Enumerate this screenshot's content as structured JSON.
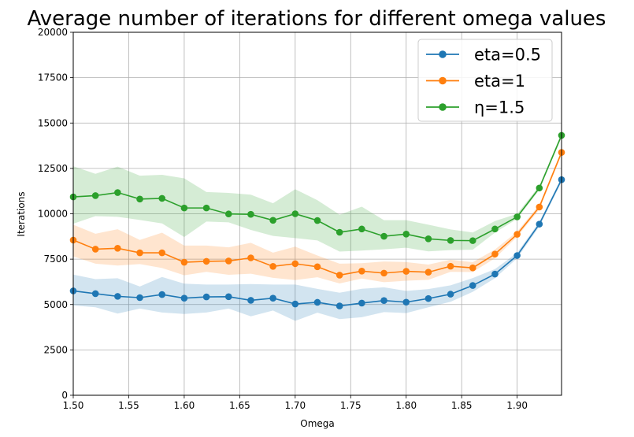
{
  "chart_data": {
    "type": "line",
    "title": "Average number of iterations for different omega values",
    "xlabel": "Omega",
    "ylabel": "Iterations",
    "xlim": [
      1.5,
      1.94
    ],
    "ylim": [
      0,
      20000
    ],
    "grid": true,
    "legend_position": "upper right",
    "x_ticks": [
      "1.50",
      "1.55",
      "1.60",
      "1.65",
      "1.70",
      "1.75",
      "1.80",
      "1.85",
      "1.90"
    ],
    "y_ticks": [
      "0",
      "2500",
      "5000",
      "7500",
      "10000",
      "12500",
      "15000",
      "17500",
      "20000"
    ],
    "x": [
      1.5,
      1.52,
      1.54,
      1.56,
      1.58,
      1.6,
      1.62,
      1.64,
      1.66,
      1.68,
      1.7,
      1.72,
      1.74,
      1.76,
      1.78,
      1.8,
      1.82,
      1.84,
      1.86,
      1.88,
      1.9,
      1.92,
      1.94
    ],
    "series": [
      {
        "name": "eta=0.5",
        "color": "#1f77b4",
        "values": [
          5750,
          5600,
          5450,
          5380,
          5550,
          5350,
          5420,
          5430,
          5230,
          5350,
          5030,
          5120,
          4920,
          5080,
          5220,
          5130,
          5330,
          5570,
          6050,
          6680,
          7700,
          9430,
          11880
        ],
        "band_low": [
          4950,
          4850,
          4500,
          4780,
          4560,
          4480,
          4560,
          4780,
          4350,
          4670,
          4100,
          4550,
          4200,
          4300,
          4580,
          4530,
          4850,
          5150,
          5700,
          6450,
          7550,
          9300,
          11750
        ],
        "band_high": [
          6650,
          6400,
          6450,
          5990,
          6520,
          6150,
          6100,
          6100,
          6130,
          6100,
          6100,
          5860,
          5650,
          5870,
          5950,
          5750,
          5850,
          6060,
          6460,
          6950,
          7850,
          9560,
          12000
        ]
      },
      {
        "name": "eta=1",
        "color": "#ff7f0e",
        "values": [
          8550,
          8050,
          8100,
          7850,
          7850,
          7330,
          7380,
          7400,
          7570,
          7100,
          7250,
          7080,
          6620,
          6840,
          6730,
          6830,
          6780,
          7110,
          7020,
          7780,
          8870,
          10370,
          13380
        ],
        "band_low": [
          7650,
          7250,
          7150,
          7230,
          7010,
          6610,
          6800,
          6640,
          6700,
          6470,
          6350,
          6500,
          6160,
          6430,
          6230,
          6310,
          6360,
          6800,
          6790,
          7550,
          8730,
          10240,
          13250
        ],
        "band_high": [
          9400,
          8900,
          9150,
          8560,
          8960,
          8250,
          8250,
          8150,
          8400,
          7860,
          8190,
          7700,
          7250,
          7280,
          7370,
          7340,
          7200,
          7470,
          7330,
          8030,
          9020,
          10500,
          13500
        ]
      },
      {
        "name": "η=1.5",
        "color": "#2ca02c",
        "values": [
          10930,
          11000,
          11170,
          10810,
          10850,
          10320,
          10320,
          9990,
          9970,
          9640,
          10000,
          9630,
          8980,
          9160,
          8760,
          8880,
          8620,
          8530,
          8520,
          9160,
          9830,
          11420,
          14320
        ],
        "band_low": [
          9450,
          9870,
          9830,
          9660,
          9470,
          8720,
          9570,
          9530,
          9110,
          8780,
          8660,
          8530,
          7920,
          7970,
          8040,
          8130,
          7930,
          8000,
          8020,
          8960,
          9720,
          11310,
          14200
        ],
        "band_high": [
          12620,
          12200,
          12600,
          12100,
          12150,
          11950,
          11200,
          11150,
          11050,
          10580,
          11350,
          10750,
          9950,
          10390,
          9650,
          9650,
          9400,
          9140,
          8970,
          9600,
          10000,
          11540,
          14440
        ]
      }
    ]
  }
}
